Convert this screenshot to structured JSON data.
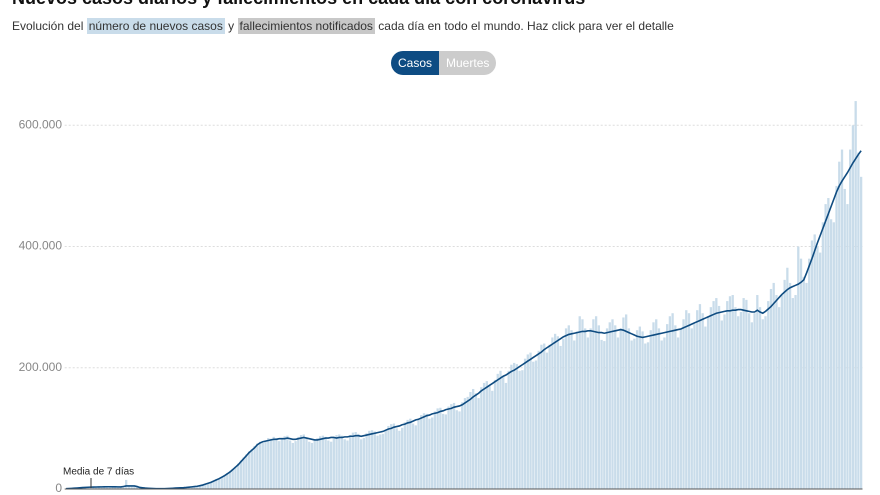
{
  "chart_data": {
    "type": "bar",
    "title": "Nuevos casos diarios y fallecimientos en cada día con coronavirus",
    "subtitle": {
      "intro": "Evolución del",
      "joiner": "y",
      "deaths": "fallecimientos notificados",
      "outro": "cada día en todo el mundo. Haz click para ver el detalle"
    },
    "buttons": [
      "Casos",
      "Muertes"
    ],
    "ylim": [
      0,
      650000
    ],
    "yticks": [
      0,
      {
        "value": 200000,
        "label": "200.000"
      },
      {
        "value": 400000,
        "label": "400.000"
      },
      {
        "value": 600000,
        "label": "600.000"
      }
    ],
    "grid": true,
    "series": [
      {
        "name": "número de nuevos casos",
        "type": "bar",
        "color": "#c9dcea",
        "values": [
          550,
          650,
          900,
          1300,
          1800,
          2100,
          2500,
          2700,
          3200,
          3000,
          3000,
          3400,
          3600,
          3200,
          3900,
          3800,
          3500,
          3700,
          3400,
          3600,
          3300,
          2000,
          15000,
          6000,
          4000,
          4500,
          3500,
          2000,
          1800,
          1300,
          1000,
          900,
          700,
          500,
          400,
          600,
          700,
          900,
          1100,
          1300,
          1700,
          1900,
          2100,
          2500,
          2600,
          3400,
          3800,
          4200,
          4900,
          5900,
          6700,
          8300,
          9800,
          11500,
          13500,
          16000,
          17500,
          20000,
          23000,
          26000,
          30000,
          33000,
          37000,
          42000,
          47000,
          52000,
          57000,
          62000,
          66000,
          71000,
          75000,
          78000,
          76000,
          80000,
          84000,
          83000,
          86000,
          84000,
          79000,
          82000,
          87000,
          88000,
          80000,
          76000,
          79000,
          86000,
          89000,
          90000,
          84000,
          78000,
          76000,
          80000,
          84000,
          87000,
          88000,
          86000,
          80000,
          78000,
          85000,
          89000,
          90000,
          88000,
          82000,
          80000,
          89000,
          93000,
          94000,
          91000,
          82000,
          84000,
          92000,
          96000,
          97000,
          95000,
          88000,
          90000,
          91000,
          98000,
          104000,
          107000,
          108000,
          100000,
          96000,
          101000,
          110000,
          114000,
          116000,
          108000,
          105000,
          114000,
          122000,
          125000,
          124000,
          116000,
          118000,
          128000,
          133000,
          134000,
          124000,
          123000,
          136000,
          140000,
          142000,
          130000,
          128000,
          143000,
          150000,
          152000,
          160000,
          165000,
          158000,
          150000,
          168000,
          175000,
          178000,
          170000,
          162000,
          180000,
          190000,
          195000,
          186000,
          175000,
          195000,
          205000,
          208000,
          206000,
          195000,
          196000,
          215000,
          222000,
          225000,
          210000,
          212000,
          228000,
          238000,
          240000,
          225000,
          238000,
          250000,
          256000,
          252000,
          236000,
          248000,
          265000,
          270000,
          262000,
          245000,
          260000,
          285000,
          280000,
          265000,
          250000,
          265000,
          280000,
          285000,
          270000,
          246000,
          244000,
          265000,
          275000,
          280000,
          270000,
          250000,
          265000,
          283000,
          288000,
          265000,
          245000,
          248000,
          262000,
          268000,
          260000,
          240000,
          242000,
          262000,
          275000,
          280000,
          265000,
          245000,
          250000,
          272000,
          285000,
          290000,
          270000,
          250000,
          265000,
          280000,
          295000,
          290000,
          265000,
          272000,
          295000,
          305000,
          290000,
          268000,
          285000,
          300000,
          310000,
          315000,
          302000,
          278000,
          288000,
          310000,
          318000,
          320000,
          300000,
          285000,
          292000,
          315000,
          312000,
          290000,
          275000,
          290000,
          320000,
          300000,
          280000,
          285000,
          310000,
          330000,
          340000,
          320000,
          300000,
          320000,
          345000,
          365000,
          340000,
          315000,
          320000,
          400000,
          380000,
          350000,
          340000,
          380000,
          410000,
          420000,
          400000,
          390000,
          440000,
          470000,
          480000,
          445000,
          440000,
          500000,
          540000,
          560000,
          495000,
          470000,
          560000,
          600000,
          640000,
          555000,
          515000
        ]
      },
      {
        "name": "Media de 7 días",
        "type": "line",
        "color": "#0f4c81",
        "values": [
          600,
          800,
          1000,
          1300,
          1600,
          2000,
          2300,
          2600,
          2900,
          3100,
          3200,
          3300,
          3400,
          3500,
          3600,
          3700,
          3700,
          3600,
          3600,
          3500,
          3400,
          4000,
          5000,
          5000,
          5000,
          5000,
          4000,
          2500,
          2000,
          1500,
          1200,
          1000,
          800,
          600,
          500,
          500,
          600,
          800,
          1000,
          1200,
          1500,
          1800,
          2000,
          2200,
          2500,
          3000,
          3500,
          4000,
          4500,
          5500,
          6500,
          8000,
          9500,
          11000,
          13000,
          15000,
          17000,
          19500,
          22000,
          25000,
          28000,
          32000,
          36000,
          40000,
          45000,
          50000,
          55000,
          60000,
          64000,
          68000,
          73000,
          76000,
          78000,
          79000,
          80000,
          81000,
          82000,
          82000,
          83000,
          83000,
          83000,
          84000,
          83000,
          82000,
          82000,
          83000,
          84000,
          85000,
          84000,
          83000,
          82000,
          81000,
          81000,
          82000,
          83000,
          84000,
          84000,
          85000,
          85000,
          84000,
          85000,
          85000,
          86000,
          86000,
          87000,
          87000,
          88000,
          88000,
          87000,
          88000,
          89000,
          90000,
          91000,
          92000,
          93000,
          94000,
          95000,
          97000,
          99000,
          100000,
          102000,
          103000,
          104000,
          106000,
          107000,
          109000,
          110000,
          112000,
          114000,
          115000,
          117000,
          119000,
          121000,
          122000,
          124000,
          125000,
          126000,
          128000,
          129000,
          131000,
          132000,
          133000,
          135000,
          136000,
          137000,
          139000,
          142000,
          145000,
          148000,
          152000,
          155000,
          158000,
          162000,
          165000,
          168000,
          171000,
          174000,
          177000,
          180000,
          183000,
          186000,
          188000,
          191000,
          194000,
          196000,
          199000,
          202000,
          205000,
          208000,
          211000,
          214000,
          217000,
          220000,
          223000,
          226000,
          230000,
          233000,
          236000,
          239000,
          242000,
          245000,
          248000,
          251000,
          253000,
          255000,
          256000,
          257000,
          258000,
          259000,
          260000,
          260000,
          261000,
          261000,
          260000,
          259000,
          258000,
          258000,
          257000,
          258000,
          259000,
          260000,
          261000,
          262000,
          263000,
          262000,
          260000,
          258000,
          256000,
          254000,
          252000,
          251000,
          250000,
          251000,
          252000,
          253000,
          254000,
          255000,
          256000,
          257000,
          258000,
          259000,
          260000,
          261000,
          262000,
          263000,
          264000,
          266000,
          268000,
          270000,
          272000,
          274000,
          276000,
          278000,
          280000,
          282000,
          284000,
          286000,
          288000,
          290000,
          291000,
          292000,
          293000,
          294000,
          294000,
          295000,
          295000,
          296000,
          296000,
          295000,
          294000,
          293000,
          292000,
          292000,
          295000,
          292000,
          290000,
          293000,
          297000,
          301000,
          306000,
          311000,
          316000,
          321000,
          325000,
          329000,
          332000,
          334000,
          336000,
          338000,
          341000,
          345000,
          356000,
          368000,
          380000,
          393000,
          406000,
          418000,
          430000,
          442000,
          454000,
          466000,
          478000,
          490000,
          500000,
          508000,
          515000,
          522000,
          530000,
          538000,
          545000,
          552000,
          558000
        ]
      }
    ]
  }
}
